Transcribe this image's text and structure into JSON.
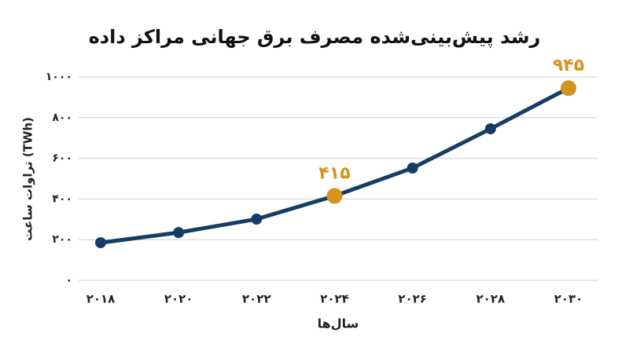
{
  "chart_data": {
    "type": "line",
    "title": "رشد پیش‌بینی‌شده مصرف برق جهانی مراکز داده",
    "x_label": "سال‌ها",
    "y_label": "تراوات ساعت (TWh)",
    "categories": [
      "۲۰۱۸",
      "۲۰۲۰",
      "۲۰۲۲",
      "۲۰۲۴",
      "۲۰۲۶",
      "۲۰۲۸",
      "۲۰۳۰"
    ],
    "values": [
      185,
      235,
      301,
      415,
      552,
      745,
      945
    ],
    "value_labels": [
      null,
      null,
      null,
      "۴۱۵",
      null,
      null,
      "۹۴۵"
    ],
    "color": "#143d66",
    "highlight_color": "#d4951f",
    "ylim": [
      0,
      1000
    ],
    "yticks": [
      {
        "value": 0,
        "label": "۰"
      },
      {
        "value": 200,
        "label": "۲۰۰"
      },
      {
        "value": 400,
        "label": "۴۰۰"
      },
      {
        "value": 600,
        "label": "۶۰۰"
      },
      {
        "value": 800,
        "label": "۸۰۰"
      },
      {
        "value": 1000,
        "label": "۱۰۰۰"
      }
    ],
    "grid": true
  }
}
